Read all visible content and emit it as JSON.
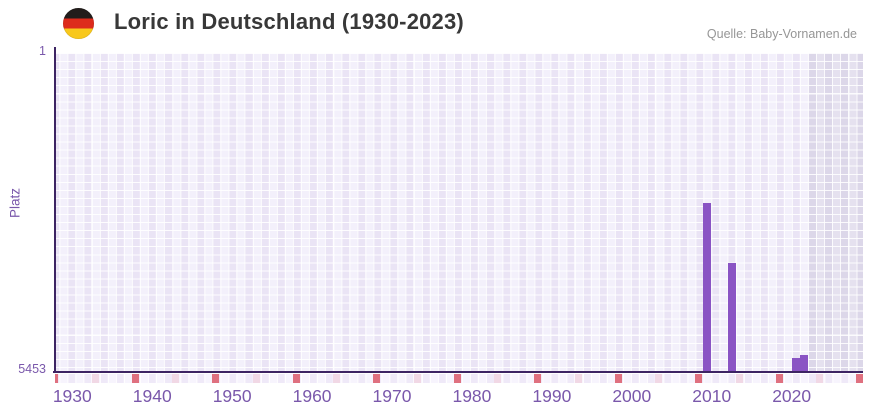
{
  "header": {
    "title": "Loric in Deutschland (1930-2023)",
    "source": "Quelle: Baby-Vornamen.de",
    "flag_icon": "germany-flag"
  },
  "chart_data": {
    "type": "bar",
    "title": "Loric in Deutschland (1930-2023)",
    "xlabel": "",
    "ylabel": "Platz",
    "legend": "none",
    "grid": "checkered-lavender",
    "y_axis": {
      "min": 1,
      "max": 5453,
      "inverted": true,
      "tick_labels": [
        "1",
        "5453"
      ]
    },
    "x_axis": {
      "start_year": 1930,
      "end_year": 2030,
      "tick_labels": [
        "1930",
        "1940",
        "1950",
        "1960",
        "1970",
        "1980",
        "1990",
        "2000",
        "2010",
        "2020"
      ]
    },
    "series": [
      {
        "name": "Platz",
        "points": [
          {
            "year": 2011,
            "rank": 2580
          },
          {
            "year": 2014,
            "rank": 3610
          },
          {
            "year": 2022,
            "rank": 5230
          },
          {
            "year": 2023,
            "rank": 5180
          }
        ]
      }
    ],
    "decade_marker_years": [
      1930,
      1940,
      1950,
      1960,
      1970,
      1980,
      1990,
      2000,
      2010,
      2020,
      2030
    ],
    "half_decade_marker_years": [
      1935,
      1945,
      1955,
      1965,
      1975,
      1985,
      1995,
      2005,
      2015,
      2025
    ],
    "future_region": {
      "from_year": 2024,
      "to_year": 2030
    }
  },
  "colors": {
    "bar": "#8a54c4",
    "axis_line": "#3d2463",
    "tick_text": "#7a58ab",
    "decade_marker": "#df707f",
    "half_decade_marker": "#f1d8e5",
    "plot_stripe_dark": "#eae4f5",
    "plot_stripe_light": "#f3f0fb",
    "future_stripe_dark": "#dcd7e9",
    "future_stripe_light": "#e5e1ef",
    "title_text": "#383838",
    "source_text": "#969696"
  }
}
